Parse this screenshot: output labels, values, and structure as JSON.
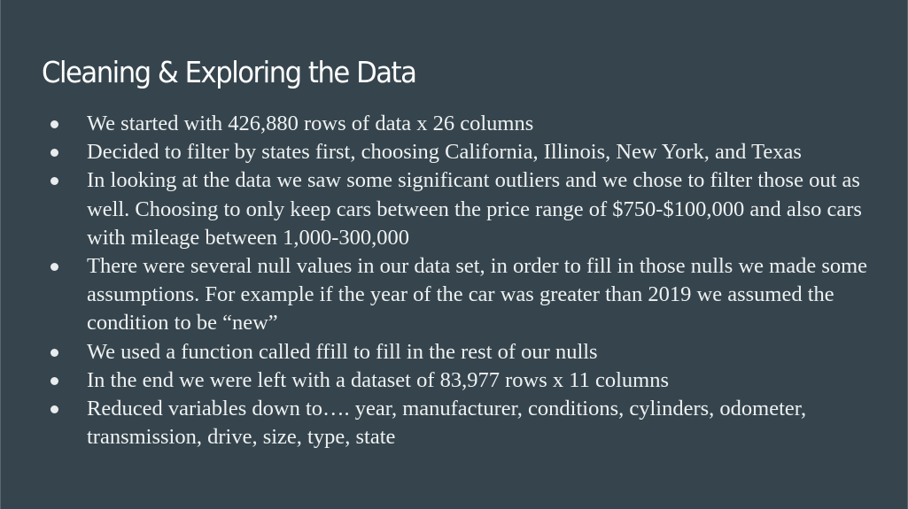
{
  "slide": {
    "title": "Cleaning & Exploring the Data",
    "background_color": "#36454d",
    "text_color": "#ffffff",
    "bullets": [
      "We started with 426,880 rows of data x 26 columns",
      "Decided to filter by states first, choosing California, Illinois, New York, and Texas",
      "In looking at the data we saw some significant outliers and we chose to filter those out as well. Choosing to only keep cars between the price range of $750-$100,000 and also cars with mileage between 1,000-300,000",
      "There were several null values in our data set, in order to fill in those nulls we made some assumptions.  For example if the year of the car was greater than 2019 we assumed the condition to be “new”",
      "We used a function called ffill to fill in the rest of our nulls",
      "In the end we were left with a dataset of 83,977 rows x 11 columns",
      "Reduced variables down to…. year, manufacturer, conditions, cylinders, odometer, transmission, drive, size, type, state"
    ]
  }
}
